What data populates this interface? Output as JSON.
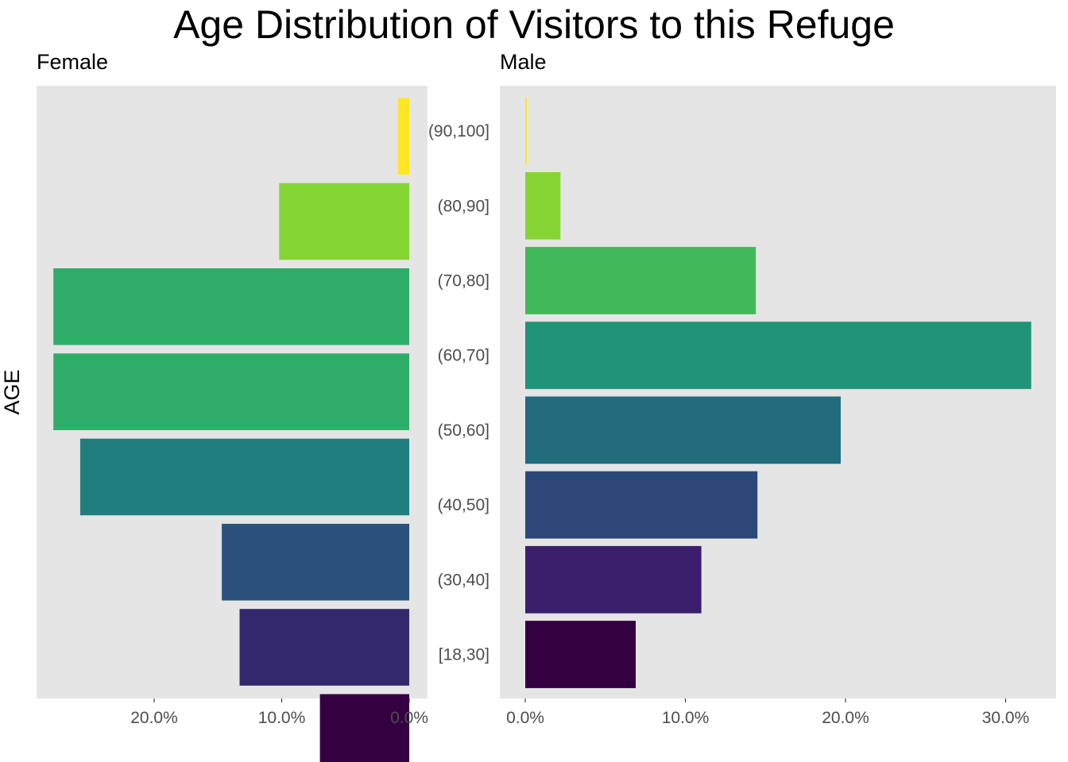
{
  "chart_data": {
    "type": "bar",
    "title": "Age Distribution of Visitors to this Refuge",
    "ylabel": "AGE",
    "categories": [
      "[18,30]",
      "(30,40]",
      "(40,50]",
      "(50,60]",
      "(60,70]",
      "(70,80]",
      "(80,90]",
      "(90,100]"
    ],
    "colors": [
      "#340042",
      "#34286d",
      "#2a527a",
      "#207e7e",
      "#25977c",
      "#39b25c",
      "#84d434",
      "#fde723"
    ],
    "panels": [
      {
        "name": "Female",
        "direction": "reversed",
        "xlim": [
          0,
          28.5
        ],
        "ticks": [
          20,
          10,
          0
        ],
        "tick_labels": [
          "20.0%",
          "10.0%",
          "0.0%"
        ],
        "values": [
          7.0,
          13.3,
          14.7,
          25.8,
          27.9,
          27.9,
          10.2,
          0.9
        ],
        "colors": [
          "#340042",
          "#34286d",
          "#2a527a",
          "#207e7e",
          "#2fae69",
          "#2fae69",
          "#84d434",
          "#fde723"
        ]
      },
      {
        "name": "Male",
        "direction": "normal",
        "xlim": [
          0,
          32.9
        ],
        "ticks": [
          0,
          10,
          20,
          30
        ],
        "tick_labels": [
          "0.0%",
          "10.0%",
          "20.0%",
          "30.0%"
        ],
        "values": [
          6.9,
          11.0,
          14.5,
          19.7,
          31.6,
          14.4,
          2.2,
          0.1
        ],
        "colors": [
          "#340042",
          "#3a206c",
          "#2c4878",
          "#216b7d",
          "#219376",
          "#41b95a",
          "#85d434",
          "#fde723"
        ]
      }
    ],
    "grid": false,
    "legend": "none"
  }
}
